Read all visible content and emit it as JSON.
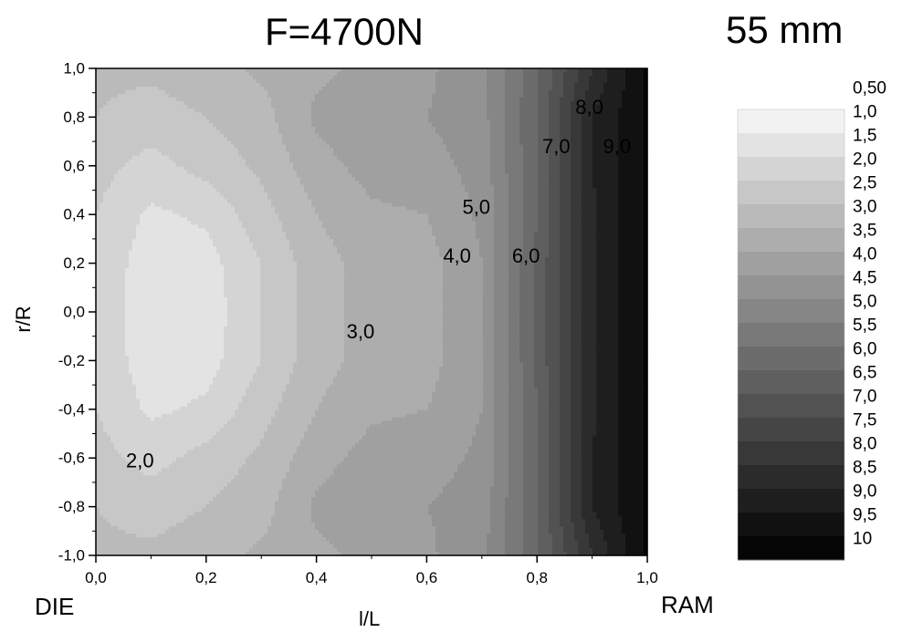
{
  "title": "F=4700N",
  "subtitle": "55 mm",
  "left_end_label": "DIE",
  "right_end_label": "RAM",
  "chart_data": {
    "type": "heatmap",
    "xlabel": "l/L",
    "ylabel": "r/R",
    "xlim": [
      0.0,
      1.0
    ],
    "ylim": [
      -1.0,
      1.0
    ],
    "x_ticks": [
      "0,0",
      "0,2",
      "0,4",
      "0,6",
      "0,8",
      "1,0"
    ],
    "y_ticks": [
      "1,0",
      "0,8",
      "0,6",
      "0,4",
      "0,2",
      "0,0",
      "-0,2",
      "-0,4",
      "-0,6",
      "-0,8",
      "-1,0"
    ],
    "x": [
      0.0,
      0.1,
      0.2,
      0.3,
      0.4,
      0.5,
      0.6,
      0.7,
      0.8,
      0.9,
      1.0
    ],
    "y": [
      -1.0,
      -0.8,
      -0.6,
      -0.4,
      -0.2,
      0.0,
      0.2,
      0.4,
      0.6,
      0.8,
      1.0
    ],
    "z": [
      [
        2.6,
        2.6,
        2.8,
        3.1,
        3.4,
        3.6,
        3.9,
        4.4,
        5.9,
        8.0,
        9.6
      ],
      [
        2.5,
        2.3,
        2.5,
        2.8,
        3.6,
        3.9,
        4.0,
        4.2,
        6.0,
        8.5,
        9.6
      ],
      [
        2.2,
        1.8,
        2.2,
        2.6,
        3.3,
        3.7,
        3.8,
        4.1,
        6.0,
        8.5,
        9.6
      ],
      [
        2.0,
        1.4,
        1.6,
        2.3,
        3.0,
        3.4,
        3.5,
        4.0,
        6.0,
        8.4,
        9.6
      ],
      [
        1.9,
        1.2,
        1.3,
        2.0,
        2.8,
        3.2,
        3.3,
        4.0,
        6.1,
        8.4,
        9.6
      ],
      [
        1.9,
        1.1,
        1.2,
        2.0,
        2.8,
        3.2,
        3.3,
        4.0,
        6.1,
        8.4,
        9.6
      ],
      [
        1.9,
        1.2,
        1.3,
        2.0,
        2.8,
        3.2,
        3.3,
        4.0,
        6.1,
        8.4,
        9.6
      ],
      [
        2.0,
        1.4,
        1.6,
        2.3,
        3.0,
        3.4,
        3.5,
        4.1,
        6.0,
        8.4,
        9.6
      ],
      [
        2.2,
        1.8,
        2.2,
        2.6,
        3.3,
        3.7,
        3.8,
        4.2,
        6.0,
        8.5,
        9.6
      ],
      [
        2.5,
        2.3,
        2.5,
        2.8,
        3.6,
        3.9,
        4.0,
        4.3,
        6.0,
        8.5,
        9.6
      ],
      [
        2.6,
        2.6,
        2.8,
        3.1,
        3.4,
        3.6,
        3.9,
        4.4,
        5.9,
        8.0,
        9.6
      ]
    ],
    "contour_labels": [
      {
        "text": "2,0",
        "x": 0.08,
        "y": -0.61
      },
      {
        "text": "3,0",
        "x": 0.48,
        "y": -0.08
      },
      {
        "text": "4,0",
        "x": 0.655,
        "y": 0.23
      },
      {
        "text": "5,0",
        "x": 0.69,
        "y": 0.43
      },
      {
        "text": "6,0",
        "x": 0.78,
        "y": 0.23
      },
      {
        "text": "7,0",
        "x": 0.835,
        "y": 0.68
      },
      {
        "text": "8,0",
        "x": 0.895,
        "y": 0.84
      },
      {
        "text": "9,0",
        "x": 0.945,
        "y": 0.68
      }
    ],
    "legend": {
      "placement": "right",
      "labels": [
        "0,50",
        "1,0",
        "1,5",
        "2,0",
        "2,5",
        "3,0",
        "3,5",
        "4,0",
        "4,5",
        "5,0",
        "5,5",
        "6,0",
        "6,5",
        "7,0",
        "7,5",
        "8,0",
        "8,5",
        "9,0",
        "9,5",
        "10"
      ],
      "levels": [
        0.5,
        1.0,
        1.5,
        2.0,
        2.5,
        3.0,
        3.5,
        4.0,
        4.5,
        5.0,
        5.5,
        6.0,
        6.5,
        7.0,
        7.5,
        8.0,
        8.5,
        9.0,
        9.5,
        10.0
      ],
      "colors": [
        "#f2f2f2",
        "#e3e3e3",
        "#d4d4d4",
        "#c7c7c7",
        "#bababa",
        "#adadad",
        "#a0a0a0",
        "#939393",
        "#868686",
        "#797979",
        "#6c6c6c",
        "#5f5f5f",
        "#525252",
        "#454545",
        "#383838",
        "#2b2b2b",
        "#1e1e1e",
        "#111111",
        "#050505"
      ]
    },
    "grid": false
  }
}
